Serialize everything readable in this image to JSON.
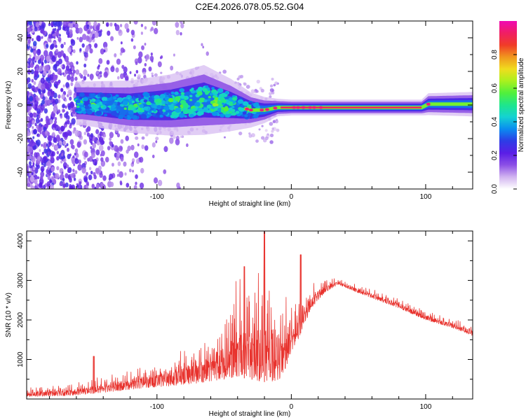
{
  "figure_title": "C2E4.2026.078.05.52.G04",
  "chart_data": [
    {
      "type": "heatmap",
      "title": "C2E4.2026.078.05.52.G04",
      "xlabel": "Height of straight line (km)",
      "ylabel": "Frequency (Hz)",
      "xlim": [
        -197,
        135
      ],
      "ylim": [
        -50,
        50
      ],
      "xticks": [
        -100,
        0,
        100
      ],
      "xtick_labels": [
        "-100",
        "0",
        "100"
      ],
      "yticks": [
        -40,
        -20,
        0,
        20,
        40
      ],
      "ytick_labels": [
        "-40",
        "-20",
        "0",
        "20",
        "40"
      ],
      "colorbar": {
        "label": "Normalized spectral amplitude",
        "range": [
          0.0,
          1.0
        ],
        "ticks": [
          0.0,
          0.2,
          0.4,
          0.6,
          0.8
        ],
        "tick_labels": [
          "0.0",
          "0.2",
          "0.4",
          "0.6",
          "0.8"
        ],
        "colors": [
          "#ffffff",
          "#d2b4f0",
          "#8c50e6",
          "#5a1ee6",
          "#2d3ce6",
          "#0a8cf0",
          "#14d2d2",
          "#1ee68c",
          "#50f03c",
          "#aaf01e",
          "#f0dc1e",
          "#f0961e",
          "#f03c28",
          "#f01e64",
          "#f00ab4"
        ]
      },
      "ridge": [
        {
          "x": -155,
          "freq": 1.0,
          "width": 5.0
        },
        {
          "x": -120,
          "freq": -1.0,
          "width": 6.0
        },
        {
          "x": -90,
          "freq": 0.0,
          "width": 7.0
        },
        {
          "x": -65,
          "freq": 3.0,
          "width": 8.0
        },
        {
          "x": -45,
          "freq": 0.0,
          "width": 6.0
        },
        {
          "x": -30,
          "freq": -3.0,
          "width": 4.0
        },
        {
          "x": -20,
          "freq": -3.0,
          "width": 3.0
        },
        {
          "x": -10,
          "freq": -1.5,
          "width": 2.0
        },
        {
          "x": 0,
          "freq": -1.5,
          "width": 1.8
        },
        {
          "x": 50,
          "freq": -1.5,
          "width": 1.8
        },
        {
          "x": 97,
          "freq": -1.5,
          "width": 1.8
        },
        {
          "x": 102,
          "freq": 0.5,
          "width": 2.5
        },
        {
          "x": 135,
          "freq": 0.5,
          "width": 2.8
        }
      ]
    },
    {
      "type": "line",
      "xlabel": "Height of straight line (km)",
      "ylabel": "SNR (10 * v/v)",
      "xlim": [
        -197,
        135
      ],
      "ylim": [
        0,
        4250
      ],
      "xticks": [
        -100,
        0,
        100
      ],
      "xtick_labels": [
        "-100",
        "0",
        "100"
      ],
      "yticks": [
        1000,
        2000,
        3000,
        4000
      ],
      "ytick_labels": [
        "1000",
        "2000",
        "3000",
        "4000"
      ],
      "series": [
        {
          "name": "SNR",
          "color": "#e8332e",
          "envelope": {
            "x": [
              -197,
              -170,
              -160,
              -150,
              -130,
              -110,
              -90,
              -70,
              -60,
              -50,
              -40,
              -30,
              -25,
              -20,
              -15,
              -10,
              -5,
              0,
              5,
              10,
              15,
              20,
              25,
              30,
              35,
              45,
              60,
              80,
              100,
              110,
              120,
              135
            ],
            "low": [
              60,
              80,
              100,
              130,
              200,
              280,
              330,
              400,
              450,
              500,
              550,
              500,
              450,
              430,
              450,
              450,
              700,
              1200,
              1500,
              1900,
              2300,
              2500,
              2700,
              2800,
              2900,
              2750,
              2550,
              2300,
              2000,
              1900,
              1800,
              1600
            ],
            "high": [
              300,
              380,
              420,
              520,
              700,
              900,
              1100,
              1500,
              1800,
              2400,
              3200,
              3400,
              3300,
              3300,
              3400,
              2900,
              2600,
              2500,
              2700,
              2800,
              2900,
              3000,
              3050,
              3100,
              3050,
              2950,
              2800,
              2550,
              2250,
              2150,
              2050,
              1850
            ]
          },
          "peaks": [
            {
              "x": -147,
              "y": 1080
            },
            {
              "x": -35,
              "y": 3350
            },
            {
              "x": -20,
              "y": 4230
            },
            {
              "x": 7,
              "y": 3650
            }
          ]
        }
      ]
    }
  ]
}
